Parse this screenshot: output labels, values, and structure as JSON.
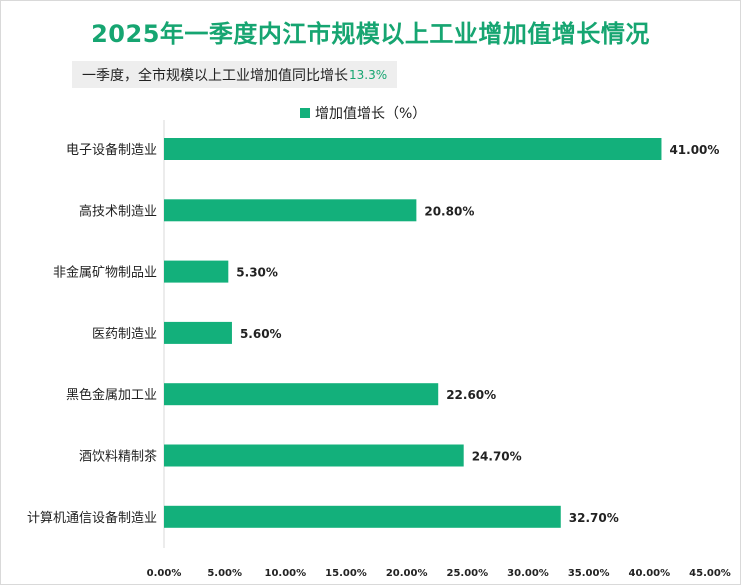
{
  "chart_data": {
    "type": "bar",
    "orientation": "horizontal",
    "title": "2025年一季度内江市规模以上工业增加值增长情况",
    "subtitle": "一季度，全市规模以上工业增加值同比增长",
    "subtitle_value": "13.3%",
    "legend": "增加值增长（%）",
    "categories": [
      "电子设备制造业",
      "高技术制造业",
      "非金属矿物制品业",
      "医药制造业",
      "黑色金属加工业",
      "酒饮料精制茶",
      "计算机通信设备制造业"
    ],
    "values": [
      41.0,
      20.8,
      5.3,
      5.6,
      22.6,
      24.7,
      32.7
    ],
    "value_labels": [
      "41.00%",
      "20.80%",
      "5.30%",
      "5.60%",
      "22.60%",
      "24.70%",
      "32.70%"
    ],
    "xlim": [
      0,
      45
    ],
    "xticks": [
      "0.00%",
      "5.00%",
      "10.00%",
      "15.00%",
      "20.00%",
      "25.00%",
      "30.00%",
      "35.00%",
      "40.00%",
      "45.00%"
    ],
    "grid": false,
    "legend_position": "top"
  },
  "colors": {
    "bar": "#13b07b",
    "title": "#16a571",
    "accent": "#16a571"
  }
}
